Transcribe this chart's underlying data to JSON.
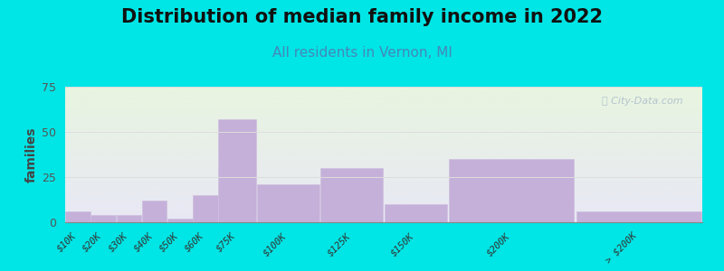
{
  "title": "Distribution of median family income in 2022",
  "subtitle": "All residents in Vernon, MI",
  "ylabel": "families",
  "categories": [
    "$10K",
    "$20K",
    "$30K",
    "$40K",
    "$50K",
    "$60K",
    "$75K",
    "$100K",
    "$125K",
    "$150K",
    "$200K",
    "> $200K"
  ],
  "bin_edges": [
    0,
    10,
    20,
    30,
    40,
    50,
    60,
    75,
    100,
    125,
    150,
    200,
    250
  ],
  "values": [
    6,
    4,
    4,
    12,
    2,
    15,
    57,
    21,
    30,
    10,
    35,
    6
  ],
  "bar_color": "#c4b0d8",
  "bar_edge_color": "#d0c0e0",
  "background_color": "#00e5e5",
  "bg_top_color": "#e8f5e0",
  "bg_bottom_color": "#e8e8f5",
  "ylim": [
    0,
    75
  ],
  "yticks": [
    0,
    25,
    50,
    75
  ],
  "title_fontsize": 15,
  "subtitle_fontsize": 11,
  "subtitle_color": "#4488bb",
  "ylabel_fontsize": 10,
  "watermark": "ⓘ City-Data.com",
  "watermark_color": "#aabbcc",
  "tick_label_fontsize": 7.5,
  "grid_color": "#dddddd"
}
